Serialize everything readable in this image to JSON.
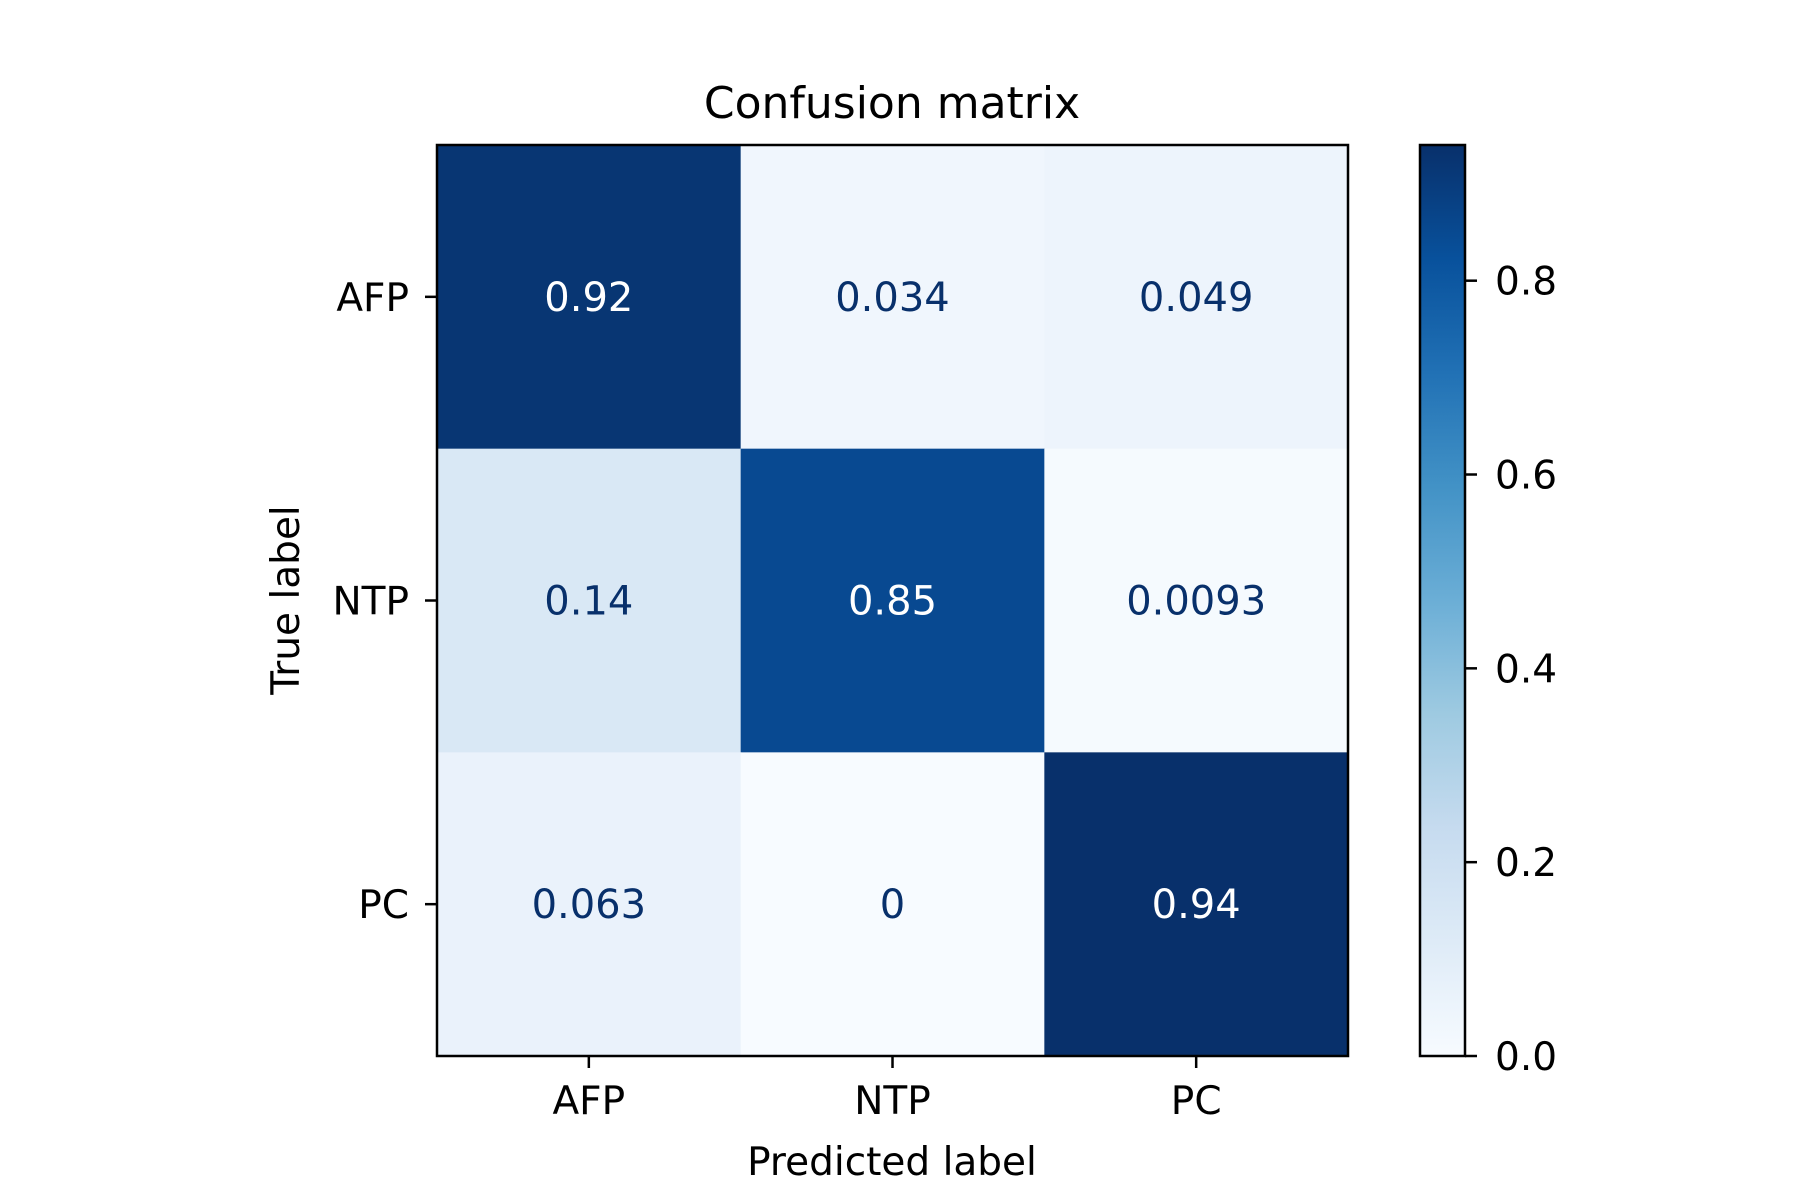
{
  "chart_data": {
    "type": "heatmap",
    "title": "Confusion matrix",
    "xlabel": "Predicted label",
    "ylabel": "True label",
    "x_categories": [
      "AFP",
      "NTP",
      "PC"
    ],
    "y_categories": [
      "AFP",
      "NTP",
      "PC"
    ],
    "values": [
      [
        0.92,
        0.034,
        0.049
      ],
      [
        0.14,
        0.85,
        0.0093
      ],
      [
        0.063,
        0,
        0.94
      ]
    ],
    "cell_labels": [
      [
        "0.92",
        "0.034",
        "0.049"
      ],
      [
        "0.14",
        "0.85",
        "0.0093"
      ],
      [
        "0.063",
        "0",
        "0.94"
      ]
    ],
    "colormap": "Blues",
    "colorbar": {
      "range": [
        0,
        0.94
      ],
      "ticks": [
        0.0,
        0.2,
        0.4,
        0.6,
        0.8
      ],
      "tick_labels": [
        "0.0",
        "0.2",
        "0.4",
        "0.6",
        "0.8"
      ]
    },
    "grid": false
  }
}
